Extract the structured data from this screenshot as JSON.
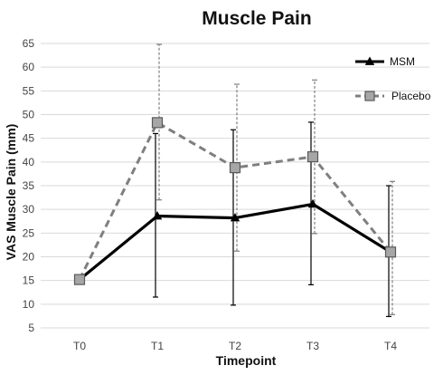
{
  "chart_data": {
    "type": "line",
    "title": "Muscle Pain",
    "xlabel": "Timepoint",
    "ylabel": "VAS Muscle Pain (mm)",
    "categories": [
      "T0",
      "T1",
      "T2",
      "T3",
      "T4"
    ],
    "ylim": [
      5,
      65
    ],
    "yticks": [
      5,
      10,
      15,
      20,
      25,
      30,
      35,
      40,
      45,
      50,
      55,
      60,
      65
    ],
    "grid": true,
    "legend_position": "top-right",
    "series": [
      {
        "name": "MSM",
        "color": "#000000",
        "line_style": "solid",
        "marker": "triangle",
        "values": [
          15.2,
          28.6,
          28.2,
          31.1,
          21.0
        ],
        "error_low": [
          15.2,
          11.5,
          9.8,
          14.1,
          7.4
        ],
        "error_high": [
          15.2,
          46.0,
          46.8,
          48.4,
          35.0
        ]
      },
      {
        "name": "Placebo",
        "color": "#7f7f7f",
        "line_style": "dashed",
        "marker": "square",
        "values": [
          15.2,
          48.3,
          38.8,
          41.1,
          21.0
        ],
        "error_low": [
          15.2,
          32.0,
          21.2,
          24.9,
          7.8
        ],
        "error_high": [
          15.2,
          64.8,
          56.4,
          57.3,
          35.9
        ]
      }
    ]
  }
}
